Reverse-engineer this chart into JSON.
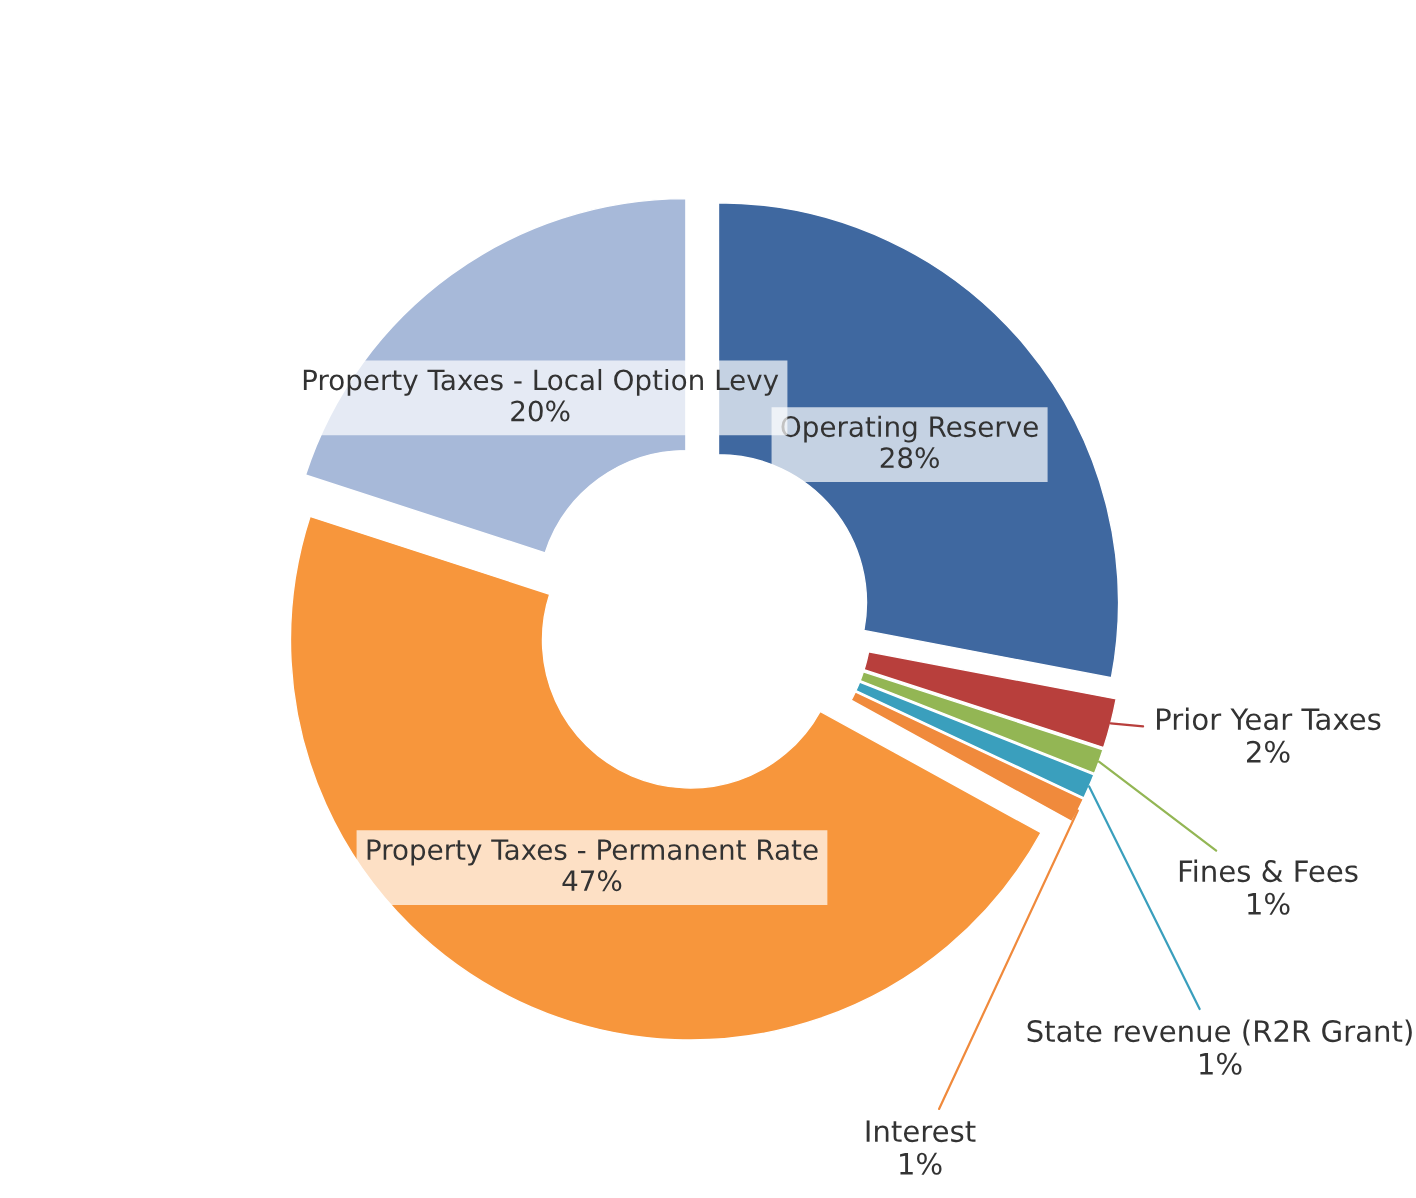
{
  "chart_data": {
    "type": "donut",
    "categories": [
      "Operating Reserve",
      "Prior Year Taxes",
      "Fines & Fees",
      "State revenue (R2R Grant)",
      "Interest",
      "Property Taxes - Permanent Rate",
      "Property Taxes - Local Option Levy"
    ],
    "values": [
      28,
      2,
      1,
      1,
      1,
      47,
      20
    ],
    "value_labels": [
      "28%",
      "2%",
      "1%",
      "1%",
      "1%",
      "47%",
      "20%"
    ],
    "colors": [
      "#3f68a0",
      "#b83f3c",
      "#93b654",
      "#3a9fbd",
      "#f08a3c",
      "#f7963c",
      "#a7b9d9"
    ],
    "legend": false
  }
}
